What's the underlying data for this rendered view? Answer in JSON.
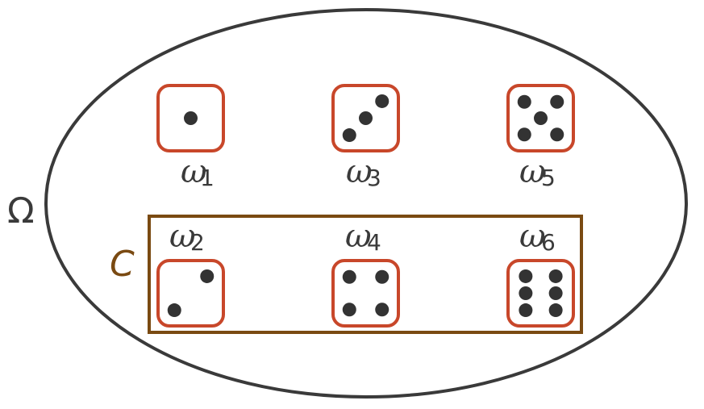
{
  "sample_space": {
    "label": "Ω"
  },
  "event": {
    "label": "C",
    "members": [
      "ω2",
      "ω4",
      "ω6"
    ]
  },
  "outcomes": [
    {
      "symbol": "ω",
      "index": "1",
      "pips": 1
    },
    {
      "symbol": "ω",
      "index": "2",
      "pips": 2
    },
    {
      "symbol": "ω",
      "index": "3",
      "pips": 3
    },
    {
      "symbol": "ω",
      "index": "4",
      "pips": 4
    },
    {
      "symbol": "ω",
      "index": "5",
      "pips": 5
    },
    {
      "symbol": "ω",
      "index": "6",
      "pips": 6
    }
  ],
  "colors": {
    "ellipse": "#3a3a3a",
    "die_border": "#c8472a",
    "pip": "#333333",
    "event_box": "#7a4a12",
    "text": "#3a3a3a"
  }
}
